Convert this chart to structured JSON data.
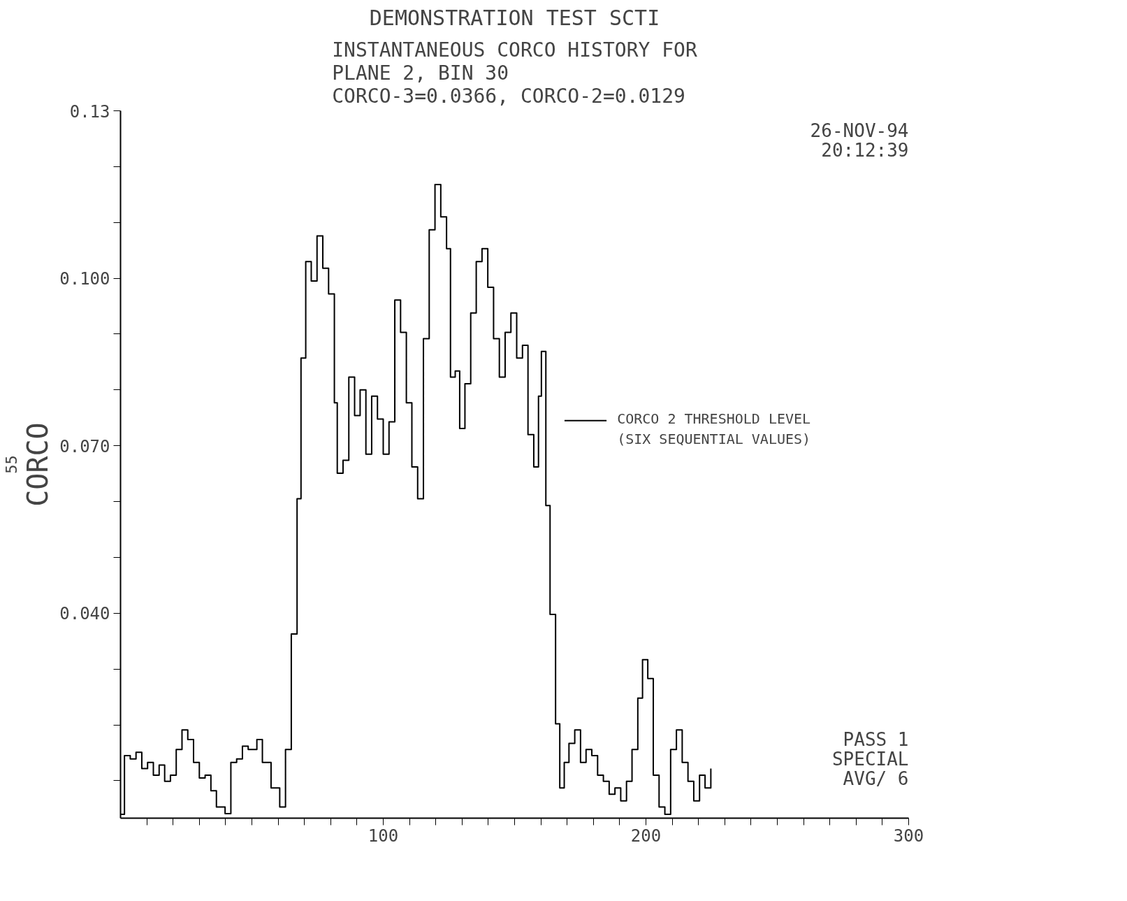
{
  "chart_data": {
    "type": "step",
    "title": "DEMONSTRATION TEST SCTI",
    "subtitle": "INSTANTANEOUS CORCO HISTORY FOR\nPLANE 2, BIN 30\nCORCO-3=0.0366, CORCO-2=0.0129",
    "ylabel": "CORCO",
    "annotations": [
      "26-NOV-94",
      "20:12:39",
      "55",
      "PASS 1",
      "SPECIAL",
      "AVG/ 6",
      "CORCO 2 THRESHOLD LEVEL\n(SIX SEQUENTIAL VALUES)"
    ],
    "x": [
      0,
      1.5,
      3.7,
      5.9,
      8.1,
      10.3,
      12.5,
      14.7,
      16.8,
      19.0,
      21.2,
      23.4,
      25.6,
      27.8,
      30.0,
      32.2,
      34.4,
      36.5,
      39.8,
      42.0,
      44.2,
      46.4,
      48.6,
      51.9,
      54.0,
      57.3,
      60.6,
      62.8,
      65.0,
      67.2,
      68.7,
      70.5,
      72.6,
      74.8,
      77.0,
      79.2,
      81.4,
      82.5,
      84.7,
      86.9,
      89.1,
      91.2,
      93.4,
      95.6,
      97.8,
      100,
      102.2,
      104.4,
      106.6,
      108.8,
      110.9,
      113.1,
      115.3,
      117.5,
      119.7,
      121.9,
      124.1,
      125.6,
      127.4,
      129.1,
      131.1,
      133.3,
      135.4,
      137.6,
      139.8,
      142.0,
      144.2,
      146.4,
      148.6,
      150.8,
      153.0,
      155.1,
      157.3,
      159.1,
      160.2,
      161.9,
      163.5,
      165.6,
      167.2,
      168.9,
      170.7,
      172.9,
      175.1,
      177.2,
      179.4,
      181.6,
      183.8,
      186.0,
      188.2,
      190.4,
      192.6,
      194.7,
      196.9,
      198.7,
      200.7,
      202.8,
      205.0,
      207.2,
      209.4,
      211.6,
      213.8,
      216.0,
      218.2,
      220.4,
      222.5,
      224.7
    ],
    "series": [
      {
        "color": "#000000",
        "values": [
          0.004,
          0.0145,
          0.0139,
          0.0151,
          0.0122,
          0.0133,
          0.011,
          0.0128,
          0.0099,
          0.011,
          0.0156,
          0.0191,
          0.0174,
          0.0133,
          0.0105,
          0.011,
          0.0082,
          0.0053,
          0.0041,
          0.0133,
          0.0139,
          0.0162,
          0.0156,
          0.0174,
          0.0133,
          0.0087,
          0.0053,
          0.0156,
          0.0363,
          0.0605,
          0.0857,
          0.103,
          0.0995,
          0.1076,
          0.1018,
          0.0972,
          0.0777,
          0.0651,
          0.0674,
          0.0823,
          0.0754,
          0.08,
          0.0685,
          0.0789,
          0.0748,
          0.0685,
          0.0743,
          0.0961,
          0.0903,
          0.0777,
          0.0662,
          0.0605,
          0.0892,
          0.1087,
          0.1168,
          0.111,
          0.1053,
          0.0823,
          0.0834,
          0.0731,
          0.0811,
          0.0938,
          0.103,
          0.1053,
          0.0984,
          0.0892,
          0.0823,
          0.0903,
          0.0938,
          0.0857,
          0.088,
          0.072,
          0.0662,
          0.0789,
          0.0869,
          0.0593,
          0.0398,
          0.0202,
          0.0087,
          0.0133,
          0.0167,
          0.0191,
          0.0133,
          0.0156,
          0.0145,
          0.011,
          0.0099,
          0.0076,
          0.0087,
          0.0064,
          0.0099,
          0.0156,
          0.0248,
          0.0317,
          0.0283,
          0.011,
          0.0053,
          0.004,
          0.0156,
          0.0191,
          0.0133,
          0.0099,
          0.0064,
          0.011,
          0.0087,
          0.0122
        ]
      }
    ],
    "xlim": [
      0,
      300
    ],
    "ylim": [
      0.0033,
      0.13
    ],
    "xticks": [
      {
        "value": 10,
        "label": null
      },
      {
        "value": 20,
        "label": null
      },
      {
        "value": 30,
        "label": null
      },
      {
        "value": 40,
        "label": null
      },
      {
        "value": 50,
        "label": null
      },
      {
        "value": 60,
        "label": null
      },
      {
        "value": 70,
        "label": null
      },
      {
        "value": 80,
        "label": null
      },
      {
        "value": 90,
        "label": null
      },
      100,
      {
        "value": 110,
        "label": null
      },
      {
        "value": 120,
        "label": null
      },
      {
        "value": 130,
        "label": null
      },
      {
        "value": 140,
        "label": null
      },
      {
        "value": 150,
        "label": null
      },
      {
        "value": 160,
        "label": null
      },
      {
        "value": 170,
        "label": null
      },
      {
        "value": 180,
        "label": null
      },
      {
        "value": 190,
        "label": null
      },
      200,
      {
        "value": 210,
        "label": null
      },
      {
        "value": 220,
        "label": null
      },
      {
        "value": 230,
        "label": null
      },
      {
        "value": 240,
        "label": null
      },
      {
        "value": 250,
        "label": null
      },
      {
        "value": 260,
        "label": null
      },
      {
        "value": 270,
        "label": null
      },
      {
        "value": 280,
        "label": null
      },
      {
        "value": 290,
        "label": null
      },
      300
    ],
    "yticks": [
      {
        "value": 0.01,
        "label": null
      },
      {
        "value": 0.02,
        "label": null
      },
      {
        "value": 0.03,
        "label": null
      },
      {
        "value": 0.04,
        "label": "0.040"
      },
      {
        "value": 0.05,
        "label": null
      },
      {
        "value": 0.06,
        "label": null
      },
      {
        "value": 0.07,
        "label": "0.070"
      },
      {
        "value": 0.08,
        "label": null
      },
      {
        "value": 0.09,
        "label": null
      },
      {
        "value": 0.1,
        "label": "0.100"
      },
      {
        "value": 0.11,
        "label": null
      },
      {
        "value": 0.12,
        "label": null
      },
      0.13
    ],
    "grid": false
  }
}
